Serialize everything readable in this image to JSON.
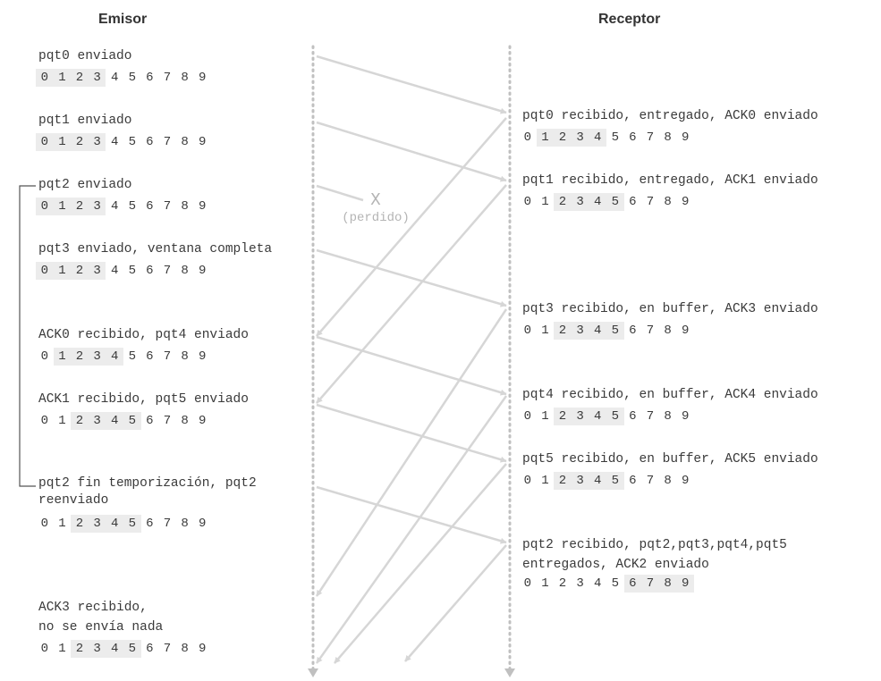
{
  "headers": {
    "sender": "Emisor",
    "receiver": "Receptor"
  },
  "sequence_numbers": [
    "0",
    "1",
    "2",
    "3",
    "4",
    "5",
    "6",
    "7",
    "8",
    "9"
  ],
  "lost_packet": {
    "mark": "X",
    "label": "(perdido)"
  },
  "sender_events": [
    {
      "lines": [
        "pqt0 enviado"
      ],
      "window": [
        0,
        1,
        2,
        3
      ]
    },
    {
      "lines": [
        "pqt1 enviado"
      ],
      "window": [
        0,
        1,
        2,
        3
      ]
    },
    {
      "lines": [
        "pqt2 enviado"
      ],
      "window": [
        0,
        1,
        2,
        3
      ]
    },
    {
      "lines": [
        "pqt3 enviado, ventana completa"
      ],
      "window": [
        0,
        1,
        2,
        3
      ]
    },
    {
      "lines": [
        "ACK0 recibido, pqt4 enviado"
      ],
      "window": [
        1,
        2,
        3,
        4
      ]
    },
    {
      "lines": [
        "ACK1 recibido, pqt5 enviado"
      ],
      "window": [
        2,
        3,
        4,
        5
      ]
    },
    {
      "lines": [
        "pqt2 fin temporización, pqt2",
        "reenviado"
      ],
      "window": [
        2,
        3,
        4,
        5
      ]
    },
    {
      "lines": [
        "ACK3 recibido,",
        "no se envía nada"
      ],
      "window": [
        2,
        3,
        4,
        5
      ]
    }
  ],
  "receiver_events": [
    {
      "lines": [
        "pqt0 recibido, entregado, ACK0 enviado"
      ],
      "window": [
        1,
        2,
        3,
        4
      ]
    },
    {
      "lines": [
        "pqt1 recibido, entregado, ACK1 enviado"
      ],
      "window": [
        2,
        3,
        4,
        5
      ]
    },
    {
      "lines": [
        "pqt3 recibido, en buffer, ACK3 enviado"
      ],
      "window": [
        2,
        3,
        4,
        5
      ]
    },
    {
      "lines": [
        "pqt4 recibido, en buffer, ACK4 enviado"
      ],
      "window": [
        2,
        3,
        4,
        5
      ]
    },
    {
      "lines": [
        "pqt5 recibido, en buffer, ACK5 enviado"
      ],
      "window": [
        2,
        3,
        4,
        5
      ]
    },
    {
      "lines": [
        "pqt2 recibido, pqt2,pqt3,pqt4,pqt5",
        "entregados, ACK2 enviado"
      ],
      "window": [
        6,
        7,
        8,
        9
      ]
    }
  ]
}
